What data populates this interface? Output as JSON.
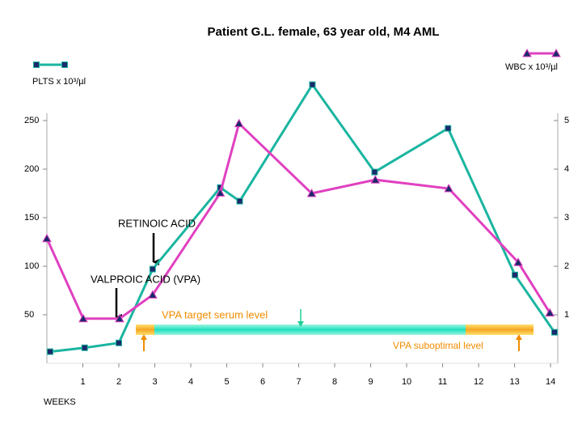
{
  "chart_data": {
    "type": "line",
    "title": "Patient G.L. female, 63 year old, M4 AML",
    "x_label": "WEEKS",
    "xlim": [
      0,
      14.2
    ],
    "xticks": [
      1,
      2,
      3,
      4,
      5,
      6,
      7,
      8,
      9,
      10,
      11,
      12,
      13,
      14
    ],
    "ylim": [
      0,
      290
    ],
    "yticks": [
      50,
      100,
      150,
      200,
      250
    ],
    "y2lim": [
      0,
      5.8
    ],
    "y2ticks": [
      1,
      2,
      3,
      4,
      5
    ],
    "grid": false,
    "series": [
      {
        "name": "PLTS x 10³/µl",
        "color": "#1ab5a0",
        "marker": "square",
        "x": [
          0.09,
          1.05,
          2.0,
          2.94,
          4.82,
          5.36,
          7.38,
          9.11,
          11.15,
          13.01,
          14.11
        ],
        "values": [
          12,
          16,
          21,
          97,
          181,
          167,
          287,
          197,
          242,
          91,
          32
        ]
      },
      {
        "name": "WBC x 10³/µl",
        "color": "#e040c0",
        "marker": "triangle",
        "axis": "y2",
        "x": [
          0,
          1.01,
          2.02,
          2.94,
          4.82,
          5.34,
          7.36,
          9.13,
          11.17,
          13.1,
          13.98
        ],
        "values": [
          2.57,
          0.92,
          0.92,
          1.41,
          3.51,
          4.94,
          3.5,
          3.78,
          3.6,
          2.08,
          1.04
        ]
      }
    ],
    "annotations": [
      "RETINOIC ACID",
      "VALPROIC ACID (VPA)",
      "VPA target serum level",
      "VPA suboptimal level"
    ]
  }
}
